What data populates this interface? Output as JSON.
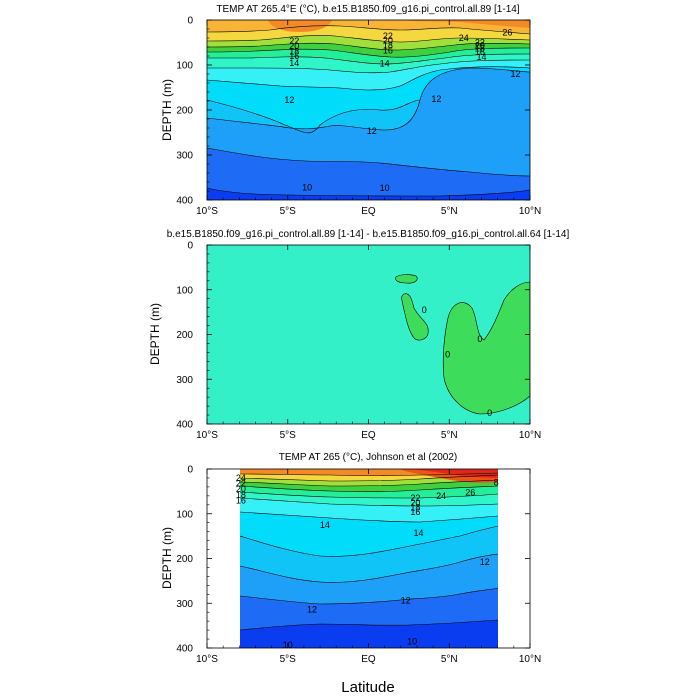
{
  "figure": {
    "xlabel": "Latitude",
    "x_ticks": [
      "10°S",
      "5°S",
      "EQ",
      "5°N",
      "10°N"
    ],
    "y_ticks": [
      "0",
      "100",
      "200",
      "300",
      "400"
    ],
    "ylabel": "DEPTH (m)"
  },
  "colors": {
    "levels_cold_to_warm": [
      "#0a3cf0",
      "#1e6cf5",
      "#1ea0f8",
      "#10c4f8",
      "#00dcfa",
      "#35f0f6",
      "#2ff5c8",
      "#25ee9a",
      "#3ad863",
      "#3fcf3f",
      "#a0e03a",
      "#f5d840",
      "#f7b435",
      "#f48a26",
      "#ee5514",
      "#e0281a"
    ],
    "diff_background": "#33f0c8",
    "diff_patch": "#3ddc5a",
    "missing": "#ffffff",
    "line": "#000000"
  },
  "chart_data": [
    {
      "type": "contour",
      "title": "TEMP AT 265.4°E (°C), b.e15.B1850.f09_g16.pi_control.all.89 [1-14]",
      "xlabel": "",
      "ylabel": "DEPTH (m)",
      "xlim": [
        -10,
        10
      ],
      "ylim": [
        400,
        0
      ],
      "contour_labels": [
        {
          "text": "22",
          "x": -4.6,
          "y": 47
        },
        {
          "text": "20",
          "x": -4.6,
          "y": 58
        },
        {
          "text": "18",
          "x": -4.6,
          "y": 70
        },
        {
          "text": "16",
          "x": -4.6,
          "y": 80
        },
        {
          "text": "14",
          "x": -4.6,
          "y": 96
        },
        {
          "text": "22",
          "x": 1.2,
          "y": 35
        },
        {
          "text": "20",
          "x": 1.2,
          "y": 46
        },
        {
          "text": "18",
          "x": 1.2,
          "y": 57
        },
        {
          "text": "16",
          "x": 1.2,
          "y": 68
        },
        {
          "text": "14",
          "x": 1.0,
          "y": 97
        },
        {
          "text": "24",
          "x": 5.9,
          "y": 40
        },
        {
          "text": "22",
          "x": 6.9,
          "y": 50
        },
        {
          "text": "20",
          "x": 6.9,
          "y": 57
        },
        {
          "text": "18",
          "x": 6.9,
          "y": 63
        },
        {
          "text": "16",
          "x": 6.9,
          "y": 71
        },
        {
          "text": "14",
          "x": 7.0,
          "y": 82
        },
        {
          "text": "26",
          "x": 8.6,
          "y": 28
        },
        {
          "text": "12",
          "x": -4.9,
          "y": 178
        },
        {
          "text": "12",
          "x": 0.2,
          "y": 247
        },
        {
          "text": "12",
          "x": 4.2,
          "y": 175
        },
        {
          "text": "12",
          "x": 9.1,
          "y": 120
        },
        {
          "text": "10",
          "x": -3.8,
          "y": 372
        },
        {
          "text": "10",
          "x": 1.0,
          "y": 373
        }
      ]
    },
    {
      "type": "contour",
      "title": "b.e15.B1850.f09_g16.pi_control.all.89 [1-14] - b.e15.B1850.f09_g16.pi_control.all.64 [1-14]",
      "xlabel": "",
      "ylabel": "DEPTH (m)",
      "xlim": [
        -10,
        10
      ],
      "ylim": [
        400,
        0
      ],
      "contour_labels": [
        {
          "text": "0",
          "x": 3.45,
          "y": 145
        },
        {
          "text": "0",
          "x": 4.9,
          "y": 245
        },
        {
          "text": "0",
          "x": 6.9,
          "y": 210
        },
        {
          "text": "0",
          "x": 7.5,
          "y": 375
        }
      ]
    },
    {
      "type": "contour",
      "title": "TEMP AT 265 (°C), Johnson et al (2002)",
      "xlabel": "Latitude",
      "ylabel": "DEPTH (m)",
      "xlim": [
        -10,
        10
      ],
      "ylim": [
        400,
        0
      ],
      "data_xrange": [
        -8,
        8
      ],
      "contour_labels": [
        {
          "text": "24",
          "x": -7.9,
          "y": 20
        },
        {
          "text": "22",
          "x": -7.9,
          "y": 32
        },
        {
          "text": "20",
          "x": -7.9,
          "y": 45
        },
        {
          "text": "18",
          "x": -7.9,
          "y": 58
        },
        {
          "text": "16",
          "x": -7.9,
          "y": 70
        },
        {
          "text": "14",
          "x": -2.7,
          "y": 125
        },
        {
          "text": "22",
          "x": 2.9,
          "y": 65
        },
        {
          "text": "20",
          "x": 2.9,
          "y": 76
        },
        {
          "text": "18",
          "x": 2.9,
          "y": 86
        },
        {
          "text": "16",
          "x": 2.9,
          "y": 96
        },
        {
          "text": "24",
          "x": 4.5,
          "y": 60
        },
        {
          "text": "26",
          "x": 6.3,
          "y": 52
        },
        {
          "text": "8",
          "x": 7.9,
          "y": 30
        },
        {
          "text": "14",
          "x": 3.1,
          "y": 143
        },
        {
          "text": "12",
          "x": 7.2,
          "y": 208
        },
        {
          "text": "12",
          "x": -3.5,
          "y": 314
        },
        {
          "text": "12",
          "x": 2.3,
          "y": 294
        },
        {
          "text": "10",
          "x": -5.0,
          "y": 393
        },
        {
          "text": "10",
          "x": 2.7,
          "y": 385
        }
      ]
    }
  ]
}
